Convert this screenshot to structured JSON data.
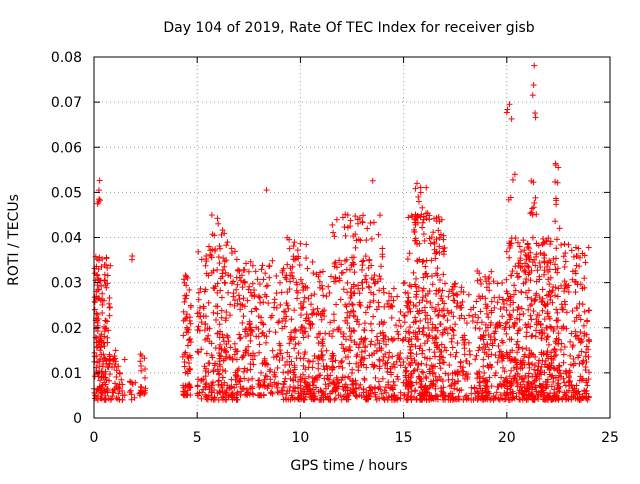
{
  "chart_data": {
    "type": "scatter",
    "title": "Day 104 of 2019, Rate Of TEC Index for receiver gisb",
    "xlabel": "GPS time / hours",
    "ylabel": "ROTI / TECUs",
    "xlim": [
      0,
      25
    ],
    "ylim": [
      0,
      0.08
    ],
    "xticks": [
      0,
      5,
      10,
      15,
      20,
      25
    ],
    "xtick_labels": [
      "0",
      "5",
      "10",
      "15",
      "20",
      "25"
    ],
    "yticks": [
      0,
      0.01,
      0.02,
      0.03,
      0.04,
      0.05,
      0.06,
      0.07,
      0.08
    ],
    "ytick_labels": [
      "0",
      "0.01",
      "0.02",
      "0.03",
      "0.04",
      "0.05",
      "0.06",
      "0.07",
      "0.08"
    ],
    "grid": true,
    "marker": "+",
    "color": "#ff0000",
    "series": [
      {
        "name": "ROTI",
        "clusters": [
          {
            "x": [
              0.0,
              0.8
            ],
            "y": [
              0.004,
              0.036
            ],
            "n": 180
          },
          {
            "x": [
              0.1,
              0.3
            ],
            "y": [
              0.045,
              0.056
            ],
            "n": 6
          },
          {
            "x": [
              0.8,
              1.5
            ],
            "y": [
              0.004,
              0.016
            ],
            "n": 40
          },
          {
            "x": [
              1.7,
              2.0
            ],
            "y": [
              0.004,
              0.009
            ],
            "n": 10
          },
          {
            "x": [
              1.8,
              1.9
            ],
            "y": [
              0.035,
              0.037
            ],
            "n": 2
          },
          {
            "x": [
              2.2,
              2.5
            ],
            "y": [
              0.005,
              0.016
            ],
            "n": 20
          },
          {
            "x": [
              4.3,
              4.7
            ],
            "y": [
              0.005,
              0.032
            ],
            "n": 70
          },
          {
            "x": [
              5.0,
              7.0
            ],
            "y": [
              0.004,
              0.038
            ],
            "n": 260
          },
          {
            "x": [
              5.5,
              6.5
            ],
            "y": [
              0.038,
              0.046
            ],
            "n": 12
          },
          {
            "x": [
              7.0,
              9.0
            ],
            "y": [
              0.005,
              0.035
            ],
            "n": 200
          },
          {
            "x": [
              8.2,
              8.4
            ],
            "y": [
              0.05,
              0.052
            ],
            "n": 1
          },
          {
            "x": [
              9.0,
              10.3
            ],
            "y": [
              0.004,
              0.04
            ],
            "n": 180
          },
          {
            "x": [
              10.3,
              12.0
            ],
            "y": [
              0.004,
              0.035
            ],
            "n": 200
          },
          {
            "x": [
              12.0,
              14.0
            ],
            "y": [
              0.004,
              0.045
            ],
            "n": 280
          },
          {
            "x": [
              11.5,
              12.8
            ],
            "y": [
              0.04,
              0.05
            ],
            "n": 8
          },
          {
            "x": [
              13.5,
              13.7
            ],
            "y": [
              0.052,
              0.053
            ],
            "n": 1
          },
          {
            "x": [
              14.0,
              15.4
            ],
            "y": [
              0.004,
              0.03
            ],
            "n": 140
          },
          {
            "x": [
              15.2,
              17.0
            ],
            "y": [
              0.004,
              0.045
            ],
            "n": 340
          },
          {
            "x": [
              15.5,
              16.6
            ],
            "y": [
              0.044,
              0.054
            ],
            "n": 18
          },
          {
            "x": [
              17.0,
              18.5
            ],
            "y": [
              0.004,
              0.03
            ],
            "n": 140
          },
          {
            "x": [
              18.5,
              20.0
            ],
            "y": [
              0.004,
              0.033
            ],
            "n": 200
          },
          {
            "x": [
              20.0,
              21.1
            ],
            "y": [
              0.004,
              0.04
            ],
            "n": 200
          },
          {
            "x": [
              20.0,
              20.4
            ],
            "y": [
              0.048,
              0.054
            ],
            "n": 4
          },
          {
            "x": [
              20.0,
              20.3
            ],
            "y": [
              0.066,
              0.072
            ],
            "n": 4
          },
          {
            "x": [
              21.0,
              22.5
            ],
            "y": [
              0.004,
              0.04
            ],
            "n": 300
          },
          {
            "x": [
              21.1,
              21.5
            ],
            "y": [
              0.045,
              0.058
            ],
            "n": 10
          },
          {
            "x": [
              21.2,
              21.4
            ],
            "y": [
              0.065,
              0.08
            ],
            "n": 5
          },
          {
            "x": [
              22.2,
              22.6
            ],
            "y": [
              0.042,
              0.058
            ],
            "n": 10
          },
          {
            "x": [
              22.5,
              24.0
            ],
            "y": [
              0.004,
              0.039
            ],
            "n": 200
          }
        ]
      }
    ]
  }
}
